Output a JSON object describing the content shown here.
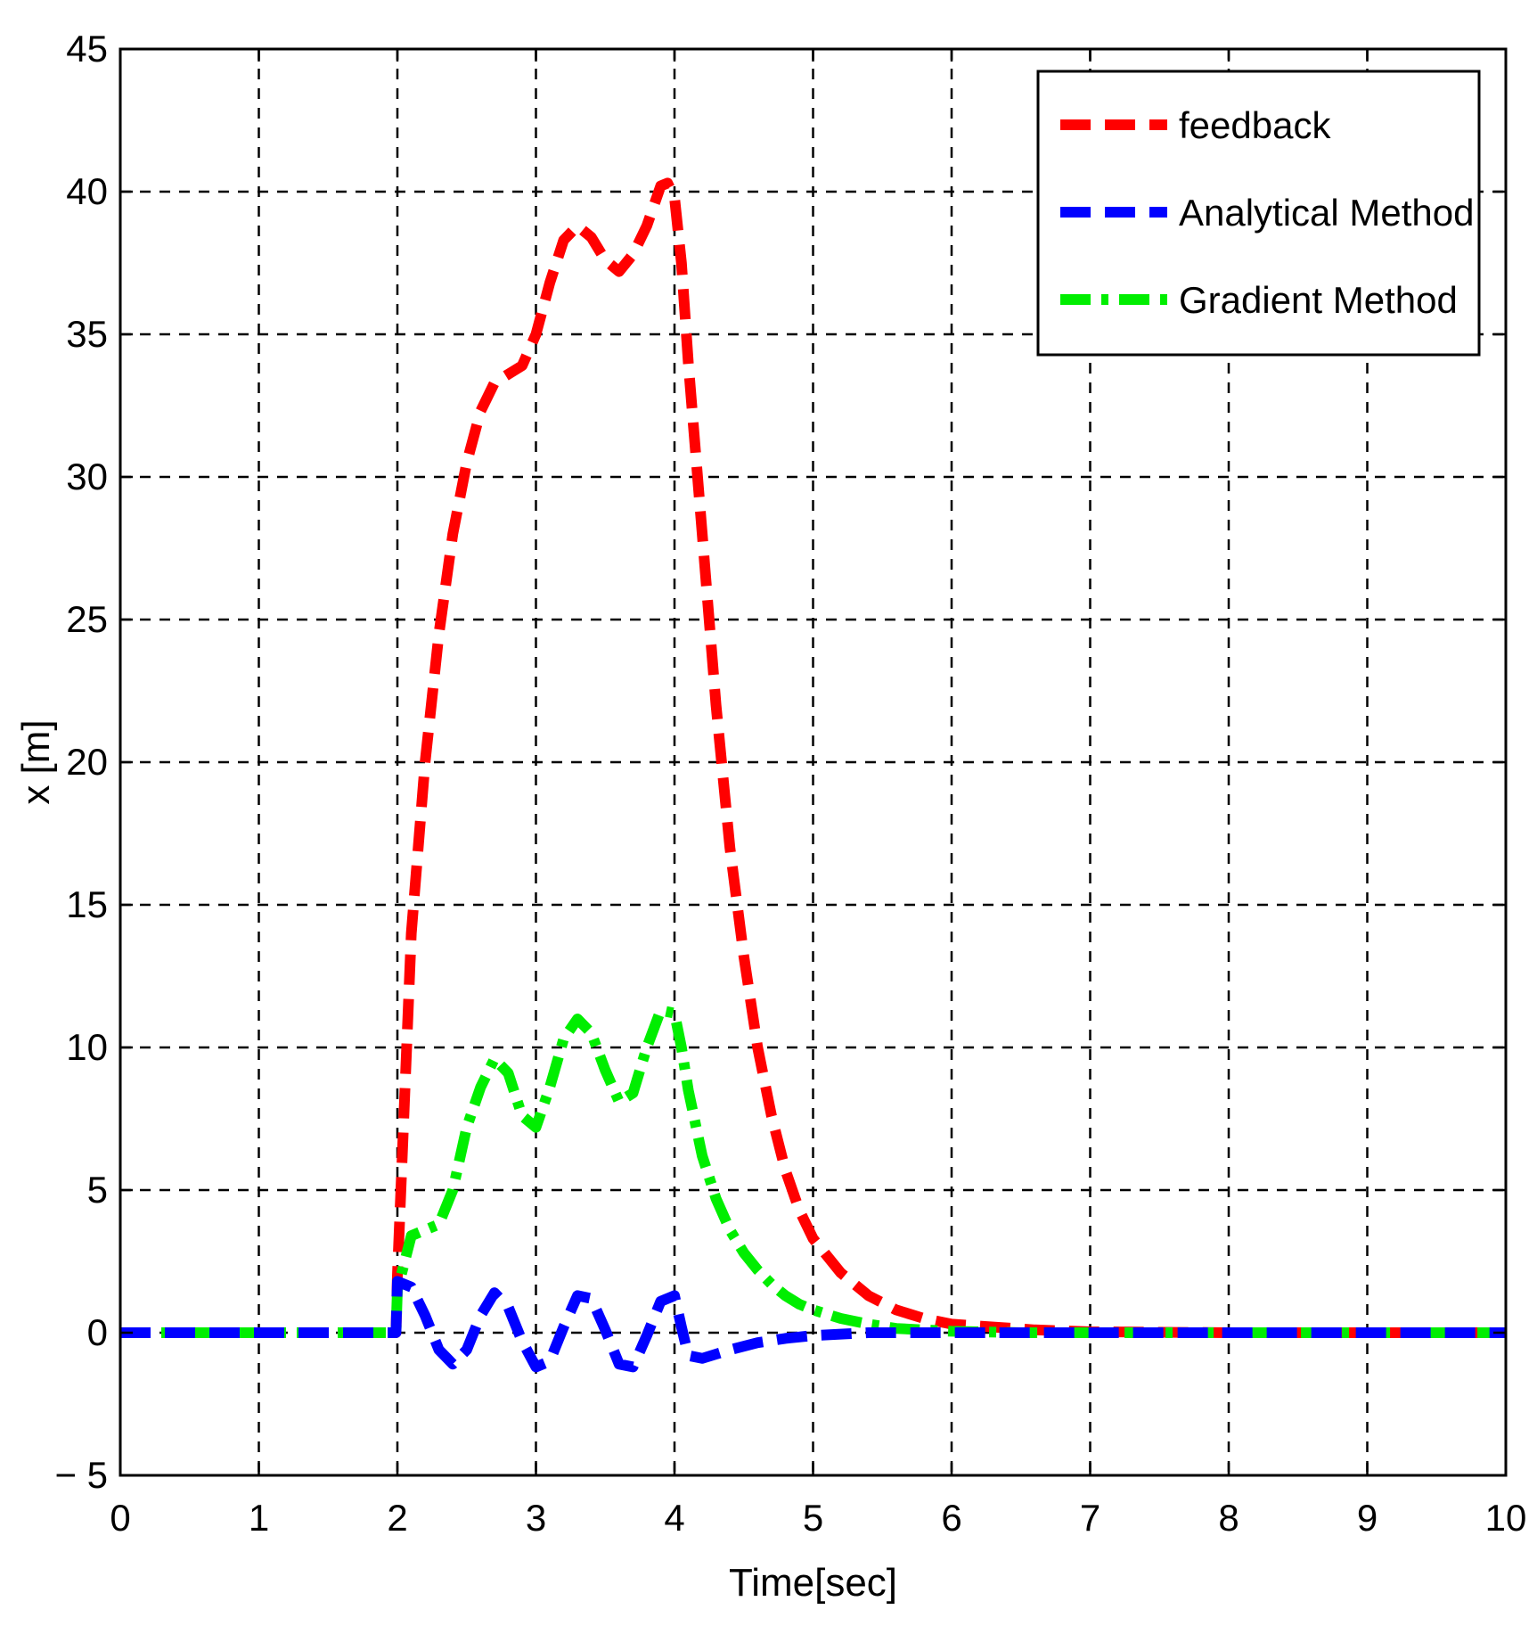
{
  "chart_data": {
    "type": "line",
    "title": "",
    "xlabel": "Time[sec]",
    "ylabel": "x [m]",
    "xlim": [
      0,
      10
    ],
    "ylim": [
      -5,
      45
    ],
    "xticks": [
      0,
      1,
      2,
      3,
      4,
      5,
      6,
      7,
      8,
      9,
      10
    ],
    "yticks": [
      -5,
      0,
      5,
      10,
      15,
      20,
      25,
      30,
      35,
      40,
      45
    ],
    "xtick_labels": [
      "0",
      "1",
      "2",
      "3",
      "4",
      "5",
      "6",
      "7",
      "8",
      "9",
      "10"
    ],
    "ytick_labels": [
      "− 5",
      "0",
      "5",
      "10",
      "15",
      "20",
      "25",
      "30",
      "35",
      "40",
      "45"
    ],
    "grid": true,
    "legend_position": "top-right",
    "series": [
      {
        "name": "feedback",
        "color": "#ff0000",
        "style": "dashed",
        "points": [
          [
            0,
            0
          ],
          [
            1.99,
            0
          ],
          [
            2.0,
            2
          ],
          [
            2.05,
            8
          ],
          [
            2.1,
            14
          ],
          [
            2.2,
            20
          ],
          [
            2.3,
            24.5
          ],
          [
            2.4,
            28
          ],
          [
            2.5,
            30.5
          ],
          [
            2.6,
            32.3
          ],
          [
            2.7,
            33.3
          ],
          [
            2.8,
            33.6
          ],
          [
            2.9,
            33.9
          ],
          [
            3.0,
            35
          ],
          [
            3.1,
            36.8
          ],
          [
            3.2,
            38.3
          ],
          [
            3.3,
            38.8
          ],
          [
            3.4,
            38.4
          ],
          [
            3.5,
            37.6
          ],
          [
            3.6,
            37.2
          ],
          [
            3.7,
            37.8
          ],
          [
            3.8,
            38.8
          ],
          [
            3.9,
            40.2
          ],
          [
            3.95,
            40.3
          ],
          [
            4.0,
            39.8
          ],
          [
            4.05,
            37.5
          ],
          [
            4.1,
            34
          ],
          [
            4.2,
            28
          ],
          [
            4.3,
            22
          ],
          [
            4.4,
            17
          ],
          [
            4.5,
            13.2
          ],
          [
            4.6,
            10
          ],
          [
            4.7,
            7.6
          ],
          [
            4.8,
            5.7
          ],
          [
            4.9,
            4.3
          ],
          [
            5.0,
            3.3
          ],
          [
            5.2,
            2.1
          ],
          [
            5.4,
            1.3
          ],
          [
            5.6,
            0.8
          ],
          [
            5.8,
            0.5
          ],
          [
            6.0,
            0.3
          ],
          [
            6.3,
            0.2
          ],
          [
            6.6,
            0.1
          ],
          [
            7.0,
            0.03
          ],
          [
            8.0,
            0
          ],
          [
            10.0,
            0
          ]
        ]
      },
      {
        "name": "Analytical Method",
        "color": "#0000ff",
        "style": "dashed",
        "points": [
          [
            0,
            0
          ],
          [
            1.99,
            0
          ],
          [
            2.0,
            1.8
          ],
          [
            2.1,
            1.6
          ],
          [
            2.2,
            0.6
          ],
          [
            2.3,
            -0.6
          ],
          [
            2.4,
            -1.1
          ],
          [
            2.5,
            -0.6
          ],
          [
            2.6,
            0.6
          ],
          [
            2.7,
            1.4
          ],
          [
            2.8,
            0.9
          ],
          [
            2.9,
            -0.3
          ],
          [
            3.0,
            -1.2
          ],
          [
            3.1,
            -1.0
          ],
          [
            3.2,
            0.2
          ],
          [
            3.3,
            1.3
          ],
          [
            3.4,
            1.2
          ],
          [
            3.5,
            0.1
          ],
          [
            3.6,
            -1.1
          ],
          [
            3.7,
            -1.2
          ],
          [
            3.8,
            -0.1
          ],
          [
            3.9,
            1.1
          ],
          [
            4.0,
            1.3
          ],
          [
            4.05,
            0.2
          ],
          [
            4.1,
            -0.8
          ],
          [
            4.2,
            -0.9
          ],
          [
            4.4,
            -0.6
          ],
          [
            4.6,
            -0.35
          ],
          [
            4.8,
            -0.2
          ],
          [
            5.0,
            -0.1
          ],
          [
            5.4,
            0
          ],
          [
            10.0,
            0
          ]
        ]
      },
      {
        "name": "Gradient Method",
        "color": "#00ee00",
        "style": "dashdot",
        "points": [
          [
            0,
            0
          ],
          [
            1.99,
            0
          ],
          [
            2.0,
            1.5
          ],
          [
            2.1,
            3.4
          ],
          [
            2.2,
            3.6
          ],
          [
            2.3,
            3.8
          ],
          [
            2.4,
            5.0
          ],
          [
            2.5,
            7.2
          ],
          [
            2.6,
            8.6
          ],
          [
            2.7,
            9.6
          ],
          [
            2.8,
            9.1
          ],
          [
            2.9,
            7.6
          ],
          [
            3.0,
            7.2
          ],
          [
            3.1,
            8.6
          ],
          [
            3.2,
            10.3
          ],
          [
            3.3,
            11.0
          ],
          [
            3.4,
            10.5
          ],
          [
            3.5,
            9.2
          ],
          [
            3.6,
            8.1
          ],
          [
            3.7,
            8.4
          ],
          [
            3.8,
            10.0
          ],
          [
            3.9,
            11.3
          ],
          [
            4.0,
            11.2
          ],
          [
            4.05,
            10.0
          ],
          [
            4.1,
            8.5
          ],
          [
            4.2,
            6.2
          ],
          [
            4.3,
            4.7
          ],
          [
            4.4,
            3.6
          ],
          [
            4.5,
            2.8
          ],
          [
            4.6,
            2.2
          ],
          [
            4.7,
            1.7
          ],
          [
            4.8,
            1.3
          ],
          [
            4.9,
            1.0
          ],
          [
            5.0,
            0.8
          ],
          [
            5.2,
            0.5
          ],
          [
            5.4,
            0.3
          ],
          [
            5.6,
            0.15
          ],
          [
            6.0,
            0.05
          ],
          [
            6.5,
            0
          ],
          [
            10.0,
            0
          ]
        ]
      }
    ]
  }
}
